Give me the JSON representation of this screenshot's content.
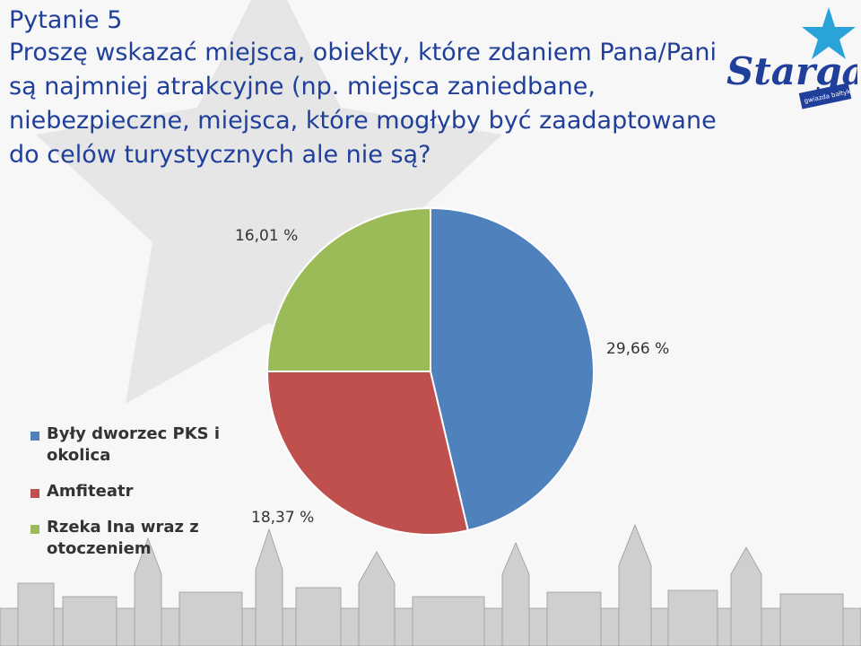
{
  "question": {
    "number": "Pytanie 5",
    "text": "Proszę wskazać miejsca, obiekty, które zdaniem Pana/Pani są najmniej atrakcyjne (np. miejsca zaniedbane, niebezpieczne, miejsca, które mogłyby być zaadaptowane do celów turystycznych ale nie są?"
  },
  "logo": {
    "text": "Stargard",
    "badge_text": "gwiazda bałtyku",
    "colors": {
      "primary": "#1f3f9a",
      "accent": "#2aa3d8"
    }
  },
  "chart_data": {
    "type": "pie",
    "categories": [
      "Były dworzec PKS i okolica",
      "Amfiteatr",
      "Rzeka Ina wraz z otoczeniem"
    ],
    "values": [
      29.66,
      18.37,
      16.01
    ],
    "labels": [
      "29,66 %",
      "18,37 %",
      "16,01 %"
    ],
    "colors": [
      "#4f81bd",
      "#c0504d",
      "#9bbb59"
    ],
    "legend_position": "left"
  }
}
